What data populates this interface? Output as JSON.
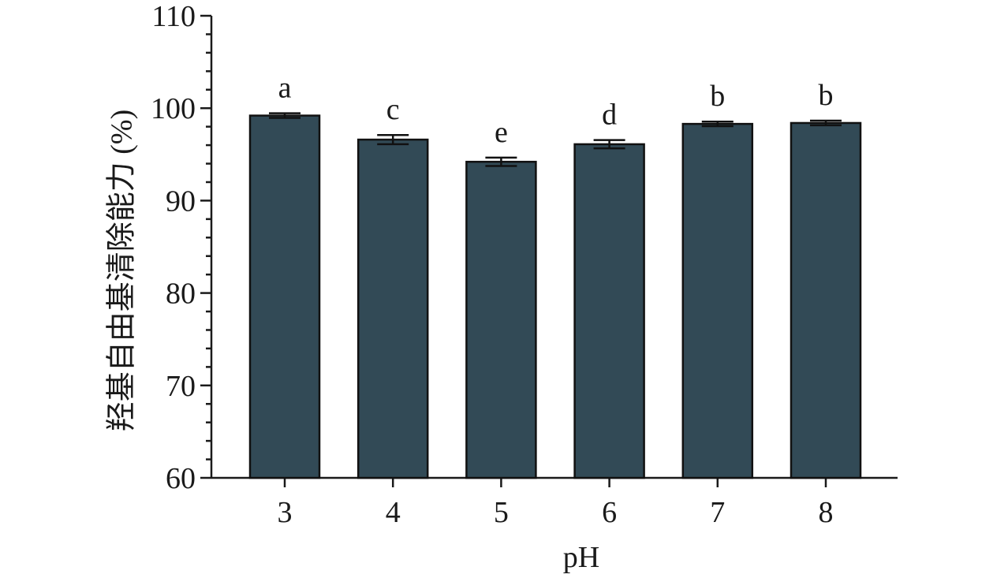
{
  "chart_data": {
    "type": "bar",
    "categories": [
      "3",
      "4",
      "5",
      "6",
      "7",
      "8"
    ],
    "values": [
      99.2,
      96.6,
      94.2,
      96.1,
      98.3,
      98.4
    ],
    "errors": [
      0.25,
      0.5,
      0.45,
      0.45,
      0.25,
      0.25
    ],
    "significance": [
      "a",
      "c",
      "e",
      "d",
      "b",
      "b"
    ],
    "xlabel": "pH",
    "ylabel": "羟基自由基清除能力 (%)",
    "ylim": [
      60,
      110
    ],
    "yticks": [
      60,
      70,
      80,
      90,
      100,
      110
    ],
    "bar_color": "#324a56",
    "grid": false,
    "legend": "none"
  }
}
